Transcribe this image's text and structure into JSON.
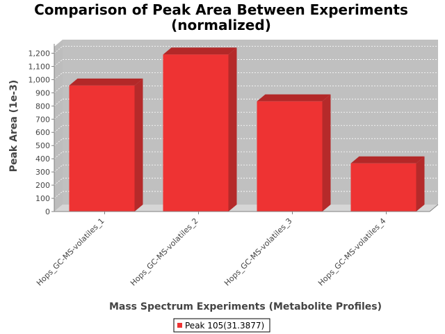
{
  "chart_data": {
    "type": "bar",
    "title_line1": "Comparison of Peak Area Between Experiments",
    "title_line2": "(normalized)",
    "xlabel": "Mass Spectrum Experiments (Metabolite Profiles)",
    "ylabel": "Peak Area (1e-3)",
    "categories": [
      "Hops_GC-MS-volatiles_1",
      "Hops_GC-MS-volatiles_2",
      "Hops_GC-MS-volatiles_3",
      "Hops_GC-MS-volatiles_4"
    ],
    "series": [
      {
        "name": "Peak 105(31.3877)",
        "values": [
          955,
          1190,
          835,
          365
        ],
        "color": "#ee3333"
      }
    ],
    "ylim": [
      0,
      1250
    ],
    "yticks": [
      0,
      100,
      200,
      300,
      400,
      500,
      600,
      700,
      800,
      900,
      1000,
      1100,
      1200
    ],
    "ytick_labels": [
      "0",
      "100",
      "200",
      "300",
      "400",
      "500",
      "600",
      "700",
      "800",
      "900",
      "1,000",
      "1,100",
      "1,200"
    ],
    "grid": true,
    "legend_position": "bottom",
    "plot_background": "#c0c0c0"
  }
}
